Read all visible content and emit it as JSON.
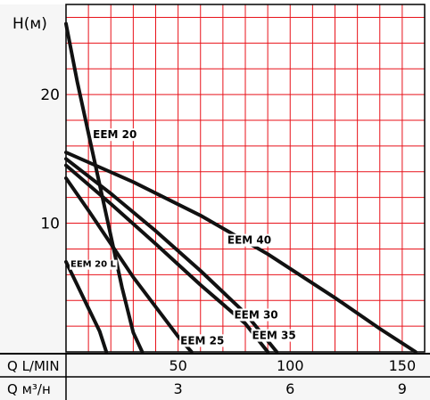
{
  "chart_data": {
    "type": "line",
    "ylabel": "H(м)",
    "x_axis_rows": [
      {
        "label": "Q L/MIN",
        "ticks": [
          "50",
          "100",
          "150"
        ],
        "tick_values": [
          50,
          100,
          150
        ]
      },
      {
        "label": "Q м³/н",
        "ticks": [
          "3",
          "6",
          "9"
        ],
        "tick_values": [
          50,
          100,
          150
        ]
      }
    ],
    "y_ticks": [
      "10",
      "20"
    ],
    "y_tick_values": [
      10,
      20
    ],
    "xlim": [
      0,
      160
    ],
    "ylim": [
      0,
      27
    ],
    "grid": true,
    "grid_color": "#e8121a",
    "line_color": "#111111",
    "series": [
      {
        "name": "EEM 20",
        "points": [
          [
            0,
            25.5
          ],
          [
            5,
            21
          ],
          [
            10,
            17
          ],
          [
            15,
            13
          ],
          [
            20,
            9
          ],
          [
            25,
            5
          ],
          [
            30,
            1.5
          ],
          [
            34,
            0
          ]
        ]
      },
      {
        "name": "EEM 20 L",
        "points": [
          [
            0,
            7.0
          ],
          [
            5,
            5.2
          ],
          [
            10,
            3.4
          ],
          [
            15,
            1.6
          ],
          [
            18,
            0
          ]
        ]
      },
      {
        "name": "EEM 25",
        "points": [
          [
            0,
            13.5
          ],
          [
            10,
            11.0
          ],
          [
            20,
            8.4
          ],
          [
            30,
            5.8
          ],
          [
            40,
            3.5
          ],
          [
            50,
            1.2
          ],
          [
            56,
            0
          ]
        ]
      },
      {
        "name": "EEM 30",
        "points": [
          [
            0,
            14.5
          ],
          [
            20,
            11.5
          ],
          [
            40,
            8.4
          ],
          [
            60,
            5.2
          ],
          [
            80,
            2.2
          ],
          [
            90,
            0
          ]
        ]
      },
      {
        "name": "EEM 35",
        "points": [
          [
            0,
            15.0
          ],
          [
            20,
            12.3
          ],
          [
            40,
            9.4
          ],
          [
            60,
            6.3
          ],
          [
            80,
            3.0
          ],
          [
            94,
            0
          ]
        ]
      },
      {
        "name": "EEM 40",
        "points": [
          [
            0,
            15.5
          ],
          [
            30,
            13.2
          ],
          [
            60,
            10.6
          ],
          [
            90,
            7.6
          ],
          [
            120,
            4.2
          ],
          [
            140,
            1.8
          ],
          [
            156,
            0
          ]
        ]
      }
    ]
  }
}
